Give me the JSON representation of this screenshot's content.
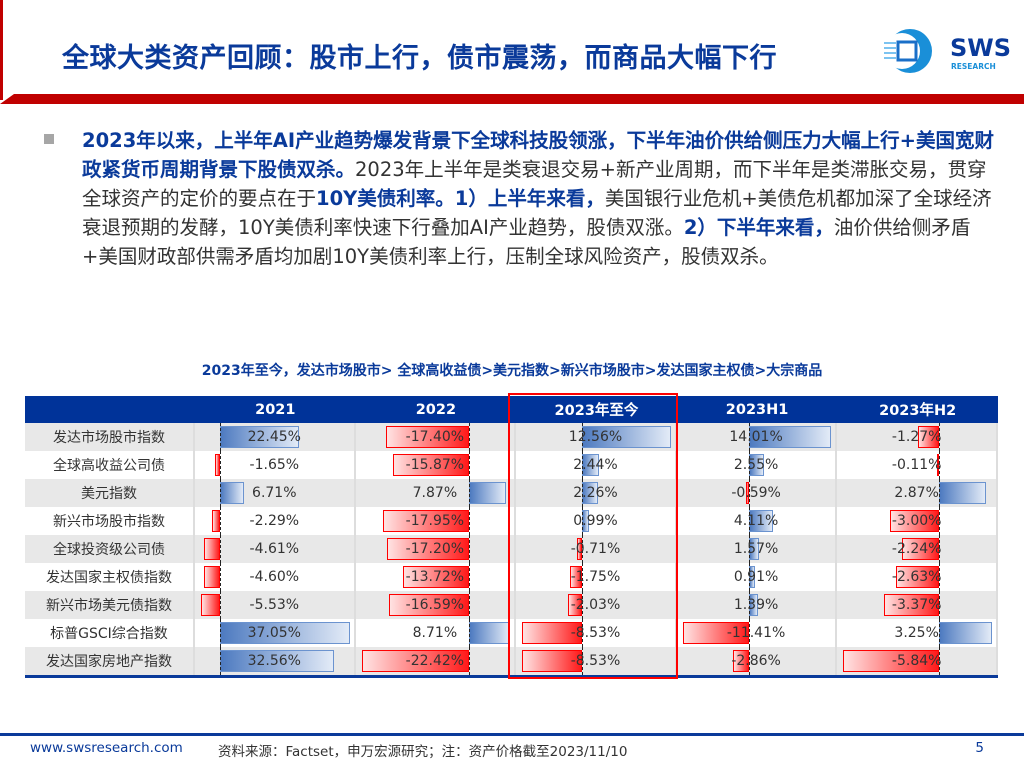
{
  "header": {
    "title": "全球大类资产回顾：股市上行，债市震荡，而商品大幅下行",
    "logo_text": "SWS",
    "logo_subtext": "RESEARCH"
  },
  "body": {
    "bold1": "2023年以来，上半年AI产业趋势爆发背景下全球科技股领涨，下半年油价供给侧压力大幅上行+美国宽财政紧货币周期背景下股债双杀。",
    "text1": "2023年上半年是类衰退交易+新产业周期，而下半年是类滞胀交易，贯穿全球资产的定价的要点在于",
    "bold2": "10Y美债利率。1）上半年来看，",
    "text2": "美国银行业危机+美债危机都加深了全球经济衰退预期的发酵，10Y美债利率快速下行叠加AI产业趋势，股债双涨。",
    "bold3": "2）下半年来看，",
    "text3": "油价供给侧矛盾+美国财政部供需矛盾均加剧10Y美债利率上行，压制全球风险资产，股债双杀。"
  },
  "table": {
    "caption": "2023年至今，发达市场股市> 全球高收益债>美元指数>新兴市场股市>发达国家主权债>大宗商品",
    "columns": [
      "",
      "2021",
      "2022",
      "2023年至今",
      "2023H1",
      "2023年H2"
    ],
    "highlighted_column": "2023年至今",
    "positive_color": "#4d7ac0",
    "negative_color": "#ff0000",
    "rows": [
      {
        "name": "发达市场股市指数",
        "values": [
          "22.45%",
          "-17.40%",
          "12.56%",
          "14.01%",
          "-1.27%"
        ]
      },
      {
        "name": "全球高收益公司债",
        "values": [
          "-1.65%",
          "-15.87%",
          "2.44%",
          "2.55%",
          "-0.11%"
        ]
      },
      {
        "name": "美元指数",
        "values": [
          "6.71%",
          "7.87%",
          "2.26%",
          "-0.59%",
          "2.87%"
        ]
      },
      {
        "name": "新兴市场股市指数",
        "values": [
          "-2.29%",
          "-17.95%",
          "0.99%",
          "4.11%",
          "-3.00%"
        ]
      },
      {
        "name": "全球投资级公司债",
        "values": [
          "-4.61%",
          "-17.20%",
          "-0.71%",
          "1.57%",
          "-2.24%"
        ]
      },
      {
        "name": "发达国家主权债指数",
        "values": [
          "-4.60%",
          "-13.72%",
          "-1.75%",
          "0.91%",
          "-2.63%"
        ]
      },
      {
        "name": "新兴市场美元债指数",
        "values": [
          "-5.53%",
          "-16.59%",
          "-2.03%",
          "1.39%",
          "-3.37%"
        ]
      },
      {
        "name": "标普GSCI综合指数",
        "values": [
          "37.05%",
          "8.71%",
          "-8.53%",
          "-11.41%",
          "3.25%"
        ]
      },
      {
        "name": "发达国家房地产指数",
        "values": [
          "32.56%",
          "-22.42%",
          "-8.53%",
          "-2.86%",
          "-5.84%"
        ]
      }
    ]
  },
  "footer": {
    "url": "www.swsresearch.com",
    "source": "资料来源：Factset，申万宏源研究；注：资产价格截至2023/11/10",
    "page": "5"
  }
}
